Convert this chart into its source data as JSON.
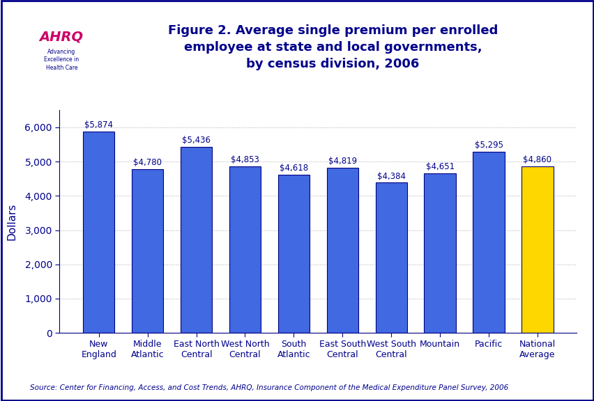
{
  "categories": [
    "New\nEngland",
    "Middle\nAtlantic",
    "East North\nCentral",
    "West North\nCentral",
    "South\nAtlantic",
    "East South\nCentral",
    "West South\nCentral",
    "Mountain",
    "Pacific",
    "National\nAverage"
  ],
  "values": [
    5874,
    4780,
    5436,
    4853,
    4618,
    4819,
    4384,
    4651,
    5295,
    4860
  ],
  "labels": [
    "$5,874",
    "$4,780",
    "$5,436",
    "$4,853",
    "$4,618",
    "$4,819",
    "$4,384",
    "$4,651",
    "$5,295",
    "$4,860"
  ],
  "bar_colors": [
    "#4169E1",
    "#4169E1",
    "#4169E1",
    "#4169E1",
    "#4169E1",
    "#4169E1",
    "#4169E1",
    "#4169E1",
    "#4169E1",
    "#FFD700"
  ],
  "title_line1": "Figure 2. Average single premium per enrolled",
  "title_line2": "employee at state and local governments,",
  "title_line3": "by census division, 2006",
  "ylabel": "Dollars",
  "ylim": [
    0,
    6500
  ],
  "yticks": [
    0,
    1000,
    2000,
    3000,
    4000,
    5000,
    6000
  ],
  "ytick_labels": [
    "0",
    "1,000",
    "2,000",
    "3,000",
    "4,000",
    "5,000",
    "6,000"
  ],
  "source_text": "Source: Center for Financing, Access, and Cost Trends, AHRQ, Insurance Component of the Medical Expenditure Panel Survey, 2006",
  "bg_color": "#FFFFFF",
  "bar_edgecolor": "#000080",
  "title_color": "#00008B",
  "label_color": "#00008B",
  "ylabel_color": "#00008B",
  "ytick_color": "#00008B",
  "xtick_color": "#00008B",
  "source_color": "#00008B",
  "header_line_color": "#00008B",
  "label_fontsize": 8.5,
  "title_fontsize": 13,
  "ylabel_fontsize": 11,
  "ytick_fontsize": 10,
  "xtick_fontsize": 9
}
